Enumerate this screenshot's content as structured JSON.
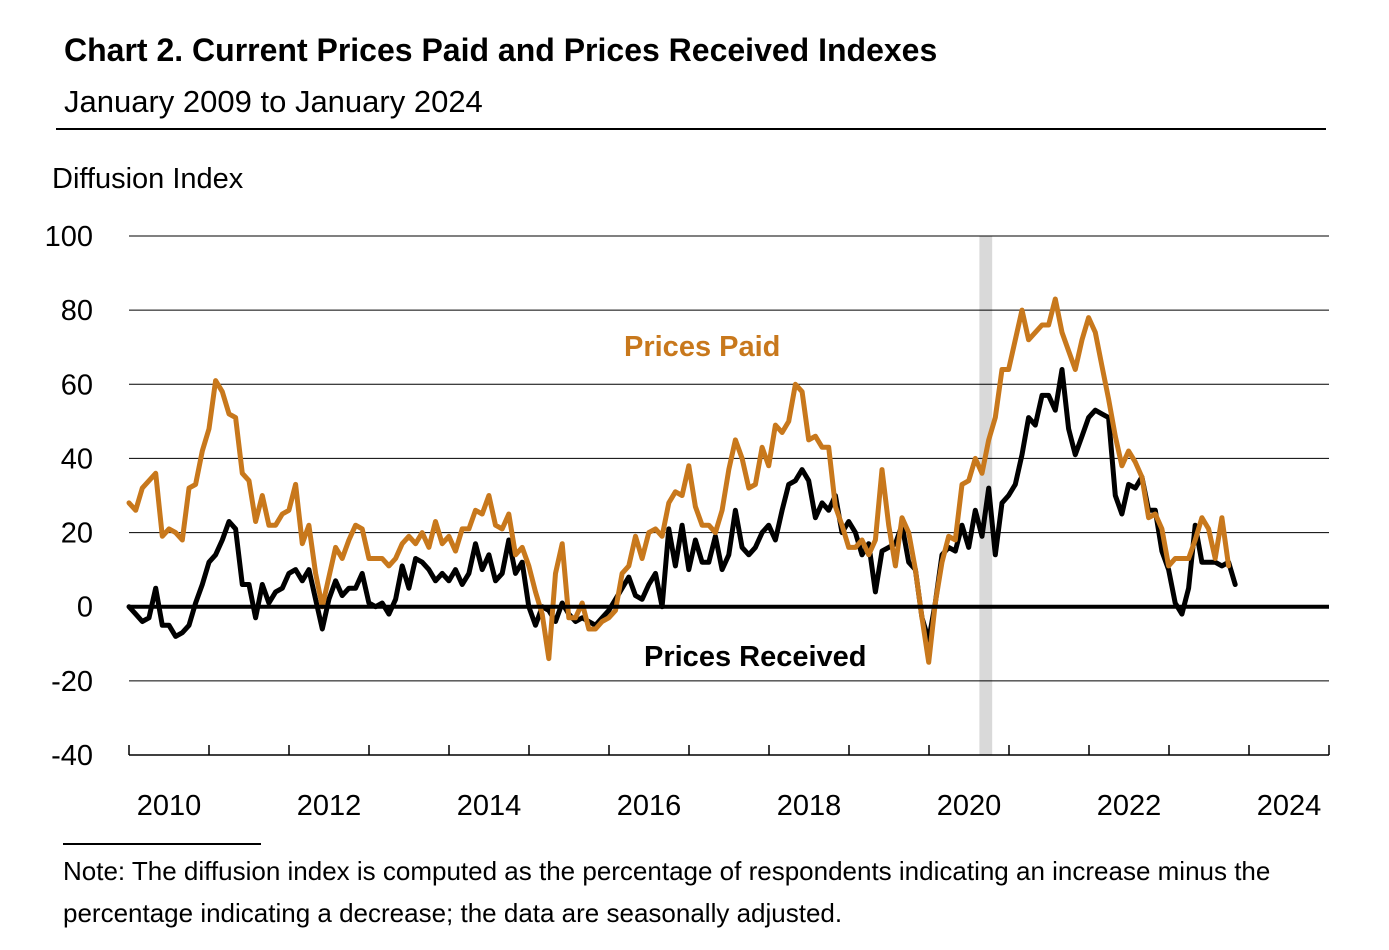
{
  "chart_data": {
    "type": "line",
    "title": "Chart 2. Current Prices Paid and Prices Received Indexes",
    "subtitle": "January 2009 to January 2024",
    "ylabel": "Diffusion Index",
    "xlabel": "",
    "ylim": [
      -40,
      100
    ],
    "yticks": [
      100,
      80,
      60,
      40,
      20,
      0,
      -20,
      -40
    ],
    "xlim": [
      2009.5,
      2024.5
    ],
    "xticks": [
      "2010",
      "2012",
      "2014",
      "2016",
      "2018",
      "2020",
      "2022",
      "2024"
    ],
    "grid": true,
    "recession_shading": [
      2020.13,
      2020.29
    ],
    "annotations": [
      "Prices Paid",
      "Prices Received"
    ],
    "series": [
      {
        "name": "Prices Paid",
        "color": "#c8781c",
        "x_start": 2009.5,
        "step": 0.0833,
        "values": [
          28,
          26,
          32,
          34,
          36,
          19,
          21,
          20,
          18,
          32,
          33,
          42,
          48,
          61,
          58,
          52,
          51,
          36,
          34,
          23,
          30,
          22,
          22,
          25,
          26,
          33,
          17,
          22,
          9,
          0,
          8,
          16,
          13,
          18,
          22,
          21,
          13,
          13,
          13,
          11,
          13,
          17,
          19,
          17,
          20,
          16,
          23,
          17,
          19,
          15,
          21,
          21,
          26,
          25,
          30,
          22,
          21,
          25,
          14,
          16,
          11,
          4,
          -2,
          -14,
          9,
          17,
          -3,
          -3,
          1,
          -6,
          -6,
          -4,
          -3,
          -1,
          9,
          11,
          19,
          13,
          20,
          21,
          19,
          28,
          31,
          30,
          38,
          27,
          22,
          22,
          20,
          26,
          37,
          45,
          40,
          32,
          33,
          43,
          38,
          49,
          47,
          50,
          60,
          58,
          45,
          46,
          43,
          43,
          27,
          22,
          16,
          16,
          18,
          14,
          18,
          37,
          22,
          11,
          24,
          20,
          10,
          -3,
          -15,
          1,
          12,
          19,
          18,
          33,
          34,
          40,
          36,
          45,
          51,
          64,
          64,
          72,
          80,
          72,
          74,
          76,
          76,
          83,
          74,
          69,
          64,
          72,
          78,
          74,
          65,
          56,
          46,
          38,
          42,
          39,
          35,
          24,
          25,
          21,
          11,
          13,
          13,
          13,
          18,
          24,
          21,
          13,
          24,
          11
        ]
      },
      {
        "name": "Prices Received",
        "color": "#000000",
        "x_start": 2009.5,
        "step": 0.0833,
        "values": [
          0,
          -2,
          -4,
          -3,
          5,
          -5,
          -5,
          -8,
          -7,
          -5,
          1,
          6,
          12,
          14,
          18,
          23,
          21,
          6,
          6,
          -3,
          6,
          1,
          4,
          5,
          9,
          10,
          7,
          10,
          2,
          -6,
          2,
          7,
          3,
          5,
          5,
          9,
          1,
          0,
          1,
          -2,
          2,
          11,
          5,
          13,
          12,
          10,
          7,
          9,
          7,
          10,
          6,
          9,
          17,
          10,
          14,
          7,
          9,
          18,
          9,
          12,
          0,
          -5,
          0,
          -1,
          -4,
          1,
          -2,
          -4,
          -3,
          -4,
          -5,
          -3,
          -1,
          2,
          5,
          8,
          3,
          2,
          6,
          9,
          0,
          21,
          11,
          22,
          10,
          18,
          12,
          12,
          19,
          10,
          14,
          26,
          16,
          14,
          16,
          20,
          22,
          18,
          26,
          33,
          34,
          37,
          34,
          24,
          28,
          26,
          30,
          20,
          23,
          20,
          14,
          17,
          4,
          15,
          16,
          17,
          22,
          12,
          10,
          -3,
          -9,
          1,
          14,
          16,
          15,
          22,
          16,
          26,
          19,
          32,
          14,
          28,
          30,
          33,
          41,
          51,
          49,
          57,
          57,
          53,
          64,
          48,
          41,
          46,
          51,
          53,
          52,
          51,
          30,
          25,
          33,
          32,
          35,
          26,
          26,
          15,
          10,
          1,
          -2,
          5,
          22,
          12,
          12,
          12,
          11,
          12,
          6
        ]
      }
    ]
  },
  "note": "Note: The diffusion index is computed as the percentage of respondents indicating an increase minus the percentage indicating a decrease; the data are seasonally adjusted."
}
